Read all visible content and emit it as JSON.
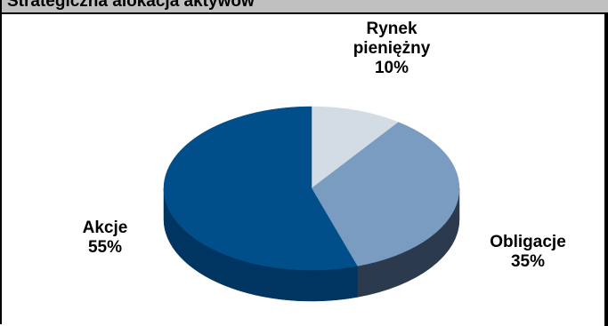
{
  "chart_data": {
    "type": "pie",
    "title": "Strategiczna alokacja aktywów",
    "slices": [
      {
        "label_lines": [
          "Rynek",
          "pieniężny"
        ],
        "value": 10,
        "value_label": "10%",
        "color": "#d3dce4",
        "side_color": "#a4adb6"
      },
      {
        "label_lines": [
          "Obligacje"
        ],
        "value": 35,
        "value_label": "35%",
        "color": "#7a9cc0",
        "side_color": "#2b3a4c"
      },
      {
        "label_lines": [
          "Akcje"
        ],
        "value": 55,
        "value_label": "55%",
        "color": "#004f8a",
        "side_color": "#003561"
      }
    ]
  }
}
